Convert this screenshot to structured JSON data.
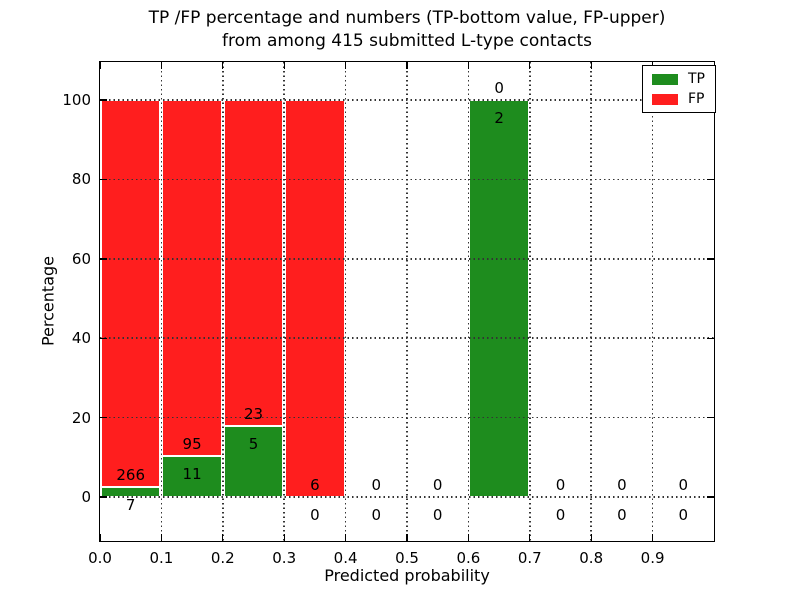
{
  "figure": {
    "title_line1": "TP /FP percentage and numbers (TP-bottom value, FP-upper)",
    "title_line2": "from among 415 submitted L-type contacts",
    "background": "#ffffff"
  },
  "chart_data": {
    "type": "bar",
    "stacked": true,
    "title": "TP /FP percentage and numbers (TP-bottom value, FP-upper) from among 415 submitted L-type contacts",
    "xlabel": "Predicted probability",
    "ylabel": "Percentage",
    "total_contacts": 415,
    "annotation_note": "TP count printed below green top, FP count printed above green top for each bin",
    "bin_edges": [
      0.0,
      0.1,
      0.2,
      0.3,
      0.4,
      0.5,
      0.6,
      0.7,
      0.8,
      0.9,
      1.0
    ],
    "categories": [
      "0.0-0.1",
      "0.1-0.2",
      "0.2-0.3",
      "0.3-0.4",
      "0.4-0.5",
      "0.5-0.6",
      "0.6-0.7",
      "0.7-0.8",
      "0.8-0.9",
      "0.9-1.0"
    ],
    "series": [
      {
        "name": "TP",
        "color": "#1e8c1e",
        "counts": [
          7,
          11,
          5,
          0,
          0,
          0,
          2,
          0,
          0,
          0
        ],
        "percent": [
          2.56,
          10.38,
          17.86,
          0,
          0,
          0,
          100,
          0,
          0,
          0
        ]
      },
      {
        "name": "FP",
        "color": "#ff1e1e",
        "counts": [
          266,
          95,
          23,
          6,
          0,
          0,
          0,
          0,
          0,
          0
        ],
        "percent": [
          97.44,
          89.62,
          82.14,
          100,
          0,
          0,
          0,
          0,
          0,
          0
        ]
      }
    ],
    "yticks": [
      0,
      20,
      40,
      60,
      80,
      100
    ],
    "xticks": [
      "0.0",
      "0.1",
      "0.2",
      "0.3",
      "0.4",
      "0.5",
      "0.6",
      "0.7",
      "0.8",
      "0.9"
    ],
    "xlim": [
      0,
      1
    ],
    "ylim": [
      0,
      100
    ],
    "ylim_display": [
      -11.1,
      109.6
    ],
    "grid": "dotted",
    "legend": {
      "position": "upper right",
      "items": [
        {
          "label": "TP",
          "color": "#1e8c1e"
        },
        {
          "label": "FP",
          "color": "#ff1e1e"
        }
      ]
    }
  }
}
